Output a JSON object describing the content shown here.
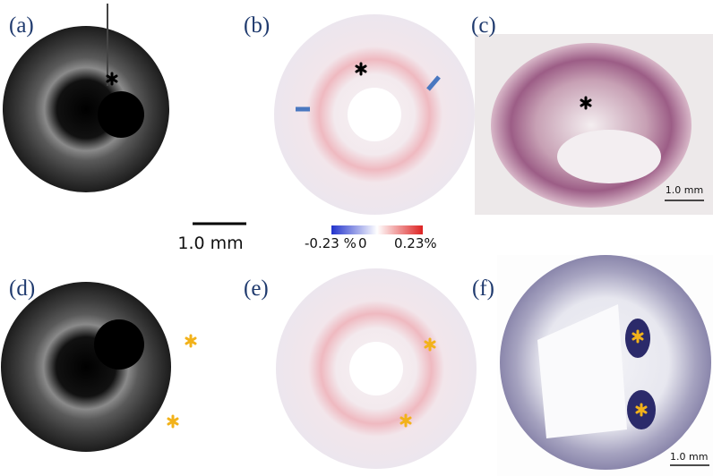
{
  "panels": [
    {
      "label": "(a)"
    },
    {
      "label": "(b)"
    },
    {
      "label": "(c)",
      "scale_label": "1.0 mm"
    },
    {
      "label": "(d)"
    },
    {
      "label": "(e)"
    },
    {
      "label": "(f)",
      "scale_label": "1.0 mm"
    }
  ],
  "scale_bar": {
    "label": "1.0 mm"
  },
  "colorbar": {
    "min_label": "-0.23 %",
    "mid_label": "0",
    "max_label": "0.23%"
  }
}
